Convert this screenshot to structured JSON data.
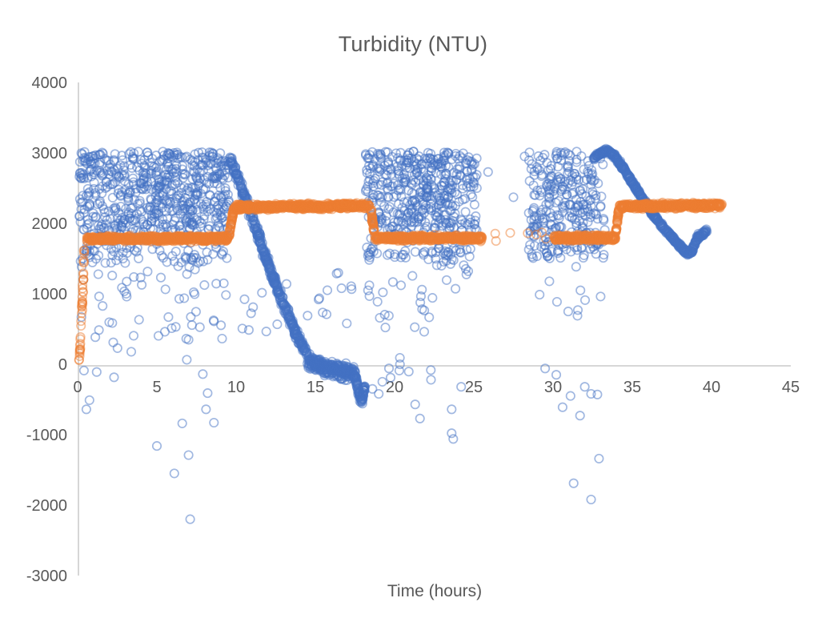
{
  "chart_data": {
    "type": "scatter",
    "title": "Turbidity (NTU)",
    "xlabel": "Time (hours)",
    "ylabel": "",
    "xlim": [
      0,
      45
    ],
    "ylim": [
      -3000,
      4000
    ],
    "xticks": [
      0,
      5,
      10,
      15,
      20,
      25,
      30,
      35,
      40,
      45
    ],
    "yticks": [
      4000,
      3000,
      2000,
      1000,
      0,
      -1000,
      -2000,
      -3000
    ],
    "grid": "off",
    "legend": "none",
    "axis_color": "#BFBFBF",
    "tick_label_color": "#595959",
    "marker": {
      "radius": 5.2,
      "stroke_width": 1.7,
      "opacity": 0.5,
      "fill": "none"
    },
    "series": [
      {
        "name": "series-1-blue",
        "color": "#4472C4",
        "seed": 12345,
        "segments": [
          {
            "kind": "cloud",
            "x": [
              0.1,
              9.55
            ],
            "y": [
              1900,
              3020
            ],
            "n": 600
          },
          {
            "kind": "cloud",
            "x": [
              0.15,
              9.55
            ],
            "y": [
              1430,
              1910
            ],
            "n": 110
          },
          {
            "kind": "cloud",
            "x": [
              0.15,
              9.5
            ],
            "y": [
              60,
              1430
            ],
            "n": 55
          },
          {
            "kind": "points",
            "pts": [
              [
                0.4,
                -90
              ],
              [
                1.2,
                -110
              ],
              [
                2.3,
                -185
              ],
              [
                0.75,
                -510
              ],
              [
                0.55,
                -640
              ],
              [
                6.6,
                -840
              ],
              [
                5.0,
                -1160
              ],
              [
                7.0,
                -1290
              ],
              [
                6.1,
                -1550
              ],
              [
                7.1,
                -2200
              ],
              [
                8.1,
                -640
              ],
              [
                8.2,
                -410
              ],
              [
                8.6,
                -830
              ],
              [
                7.9,
                -140
              ]
            ]
          },
          {
            "kind": "path",
            "pts": [
              [
                9.55,
                2930
              ],
              [
                10.1,
                2650
              ],
              [
                10.9,
                2150
              ],
              [
                11.8,
                1570
              ],
              [
                12.8,
                950
              ],
              [
                13.8,
                420
              ],
              [
                14.5,
                130
              ]
            ],
            "jx": 0.15,
            "jy": 95,
            "n": 420
          },
          {
            "kind": "path",
            "pts": [
              [
                14.5,
                60
              ],
              [
                15.5,
                -40
              ],
              [
                16.5,
                -90
              ],
              [
                17.45,
                -120
              ]
            ],
            "jx": 0.12,
            "jy": 140,
            "n": 330
          },
          {
            "kind": "path",
            "pts": [
              [
                17.5,
                -150
              ],
              [
                17.75,
                -420
              ],
              [
                17.95,
                -520
              ],
              [
                18.1,
                -300
              ]
            ],
            "jx": 0.08,
            "jy": 90,
            "n": 90
          },
          {
            "kind": "cloud",
            "x": [
              10.3,
              17.3
            ],
            "y": [
              250,
              1350
            ],
            "n": 22
          },
          {
            "kind": "cloud",
            "x": [
              18.15,
              25.2
            ],
            "y": [
              1900,
              3020
            ],
            "n": 440
          },
          {
            "kind": "cloud",
            "x": [
              18.2,
              25.1
            ],
            "y": [
              1450,
              1910
            ],
            "n": 70
          },
          {
            "kind": "cloud",
            "x": [
              18.4,
              25.0
            ],
            "y": [
              600,
              1450
            ],
            "n": 12
          },
          {
            "kind": "cloud",
            "x": [
              22.5,
              24.7
            ],
            "y": [
              1350,
              1650
            ],
            "n": 20
          },
          {
            "kind": "cloud",
            "x": [
              18.3,
              22.3
            ],
            "y": [
              -250,
              1100
            ],
            "n": 20
          },
          {
            "kind": "points",
            "pts": [
              [
                21.3,
                -570
              ],
              [
                21.6,
                -770
              ],
              [
                22.3,
                -220
              ],
              [
                24.2,
                -320
              ],
              [
                23.6,
                -640
              ],
              [
                23.6,
                -980
              ],
              [
                23.7,
                -1060
              ],
              [
                19.0,
                -420
              ],
              [
                20.3,
                -90
              ],
              [
                18.6,
                -350
              ]
            ]
          },
          {
            "kind": "points",
            "pts": [
              [
                25.9,
                2730
              ],
              [
                27.5,
                2370
              ],
              [
                28.2,
                2950
              ]
            ]
          },
          {
            "kind": "cloud",
            "x": [
              28.45,
              33.3
            ],
            "y": [
              1500,
              3020
            ],
            "n": 300
          },
          {
            "kind": "cloud",
            "x": [
              28.6,
              33.1
            ],
            "y": [
              650,
              1500
            ],
            "n": 10
          },
          {
            "kind": "points",
            "pts": [
              [
                31.1,
                -450
              ],
              [
                30.6,
                -610
              ],
              [
                31.7,
                -730
              ],
              [
                32.0,
                -320
              ],
              [
                32.4,
                -420
              ],
              [
                32.8,
                -430
              ],
              [
                32.9,
                -1340
              ],
              [
                31.3,
                -1690
              ],
              [
                32.4,
                -1920
              ],
              [
                30.2,
                -150
              ],
              [
                29.5,
                -60
              ]
            ]
          },
          {
            "kind": "path",
            "pts": [
              [
                32.55,
                2920
              ],
              [
                33.0,
                3000
              ],
              [
                33.45,
                3030
              ],
              [
                33.9,
                2950
              ],
              [
                34.5,
                2760
              ],
              [
                35.3,
                2470
              ],
              [
                36.2,
                2160
              ],
              [
                37.1,
                1900
              ],
              [
                37.9,
                1700
              ],
              [
                38.45,
                1580
              ],
              [
                38.75,
                1600
              ],
              [
                39.1,
                1800
              ],
              [
                39.7,
                1890
              ]
            ],
            "jx": 0.06,
            "jy": 45,
            "n": 560
          }
        ]
      },
      {
        "name": "series-2-orange",
        "color": "#ED7D31",
        "seed": 777,
        "segments": [
          {
            "kind": "path",
            "pts": [
              [
                0.1,
                20
              ],
              [
                0.3,
                900
              ],
              [
                0.42,
                1620
              ]
            ],
            "jx": 0.04,
            "jy": 25,
            "n": 40
          },
          {
            "kind": "path",
            "pts": [
              [
                0.55,
                1780
              ],
              [
                9.5,
                1785
              ]
            ],
            "jx": 0.06,
            "jy": 55,
            "n": 620
          },
          {
            "kind": "path",
            "pts": [
              [
                9.55,
                1820
              ],
              [
                9.85,
                2210
              ]
            ],
            "jx": 0.05,
            "jy": 40,
            "n": 45
          },
          {
            "kind": "path",
            "pts": [
              [
                9.9,
                2230
              ],
              [
                18.45,
                2245
              ]
            ],
            "jx": 0.06,
            "jy": 55,
            "n": 620
          },
          {
            "kind": "path",
            "pts": [
              [
                18.5,
                2220
              ],
              [
                18.7,
                1880
              ]
            ],
            "jx": 0.05,
            "jy": 40,
            "n": 35
          },
          {
            "kind": "path",
            "pts": [
              [
                18.75,
                1790
              ],
              [
                25.55,
                1790
              ]
            ],
            "jx": 0.06,
            "jy": 55,
            "n": 440
          },
          {
            "kind": "points",
            "pts": [
              [
                26.35,
                1855
              ],
              [
                26.4,
                1750
              ],
              [
                27.3,
                1865
              ],
              [
                28.4,
                1860
              ],
              [
                28.95,
                1840
              ],
              [
                29.3,
                1870
              ],
              [
                29.55,
                1780
              ]
            ]
          },
          {
            "kind": "path",
            "pts": [
              [
                30.05,
                1790
              ],
              [
                33.95,
                1790
              ]
            ],
            "jx": 0.05,
            "jy": 55,
            "n": 280
          },
          {
            "kind": "path",
            "pts": [
              [
                33.95,
                1830
              ],
              [
                34.15,
                2200
              ]
            ],
            "jx": 0.04,
            "jy": 35,
            "n": 35
          },
          {
            "kind": "path",
            "pts": [
              [
                34.2,
                2240
              ],
              [
                40.65,
                2260
              ]
            ],
            "jx": 0.05,
            "jy": 55,
            "n": 450
          }
        ]
      }
    ]
  }
}
